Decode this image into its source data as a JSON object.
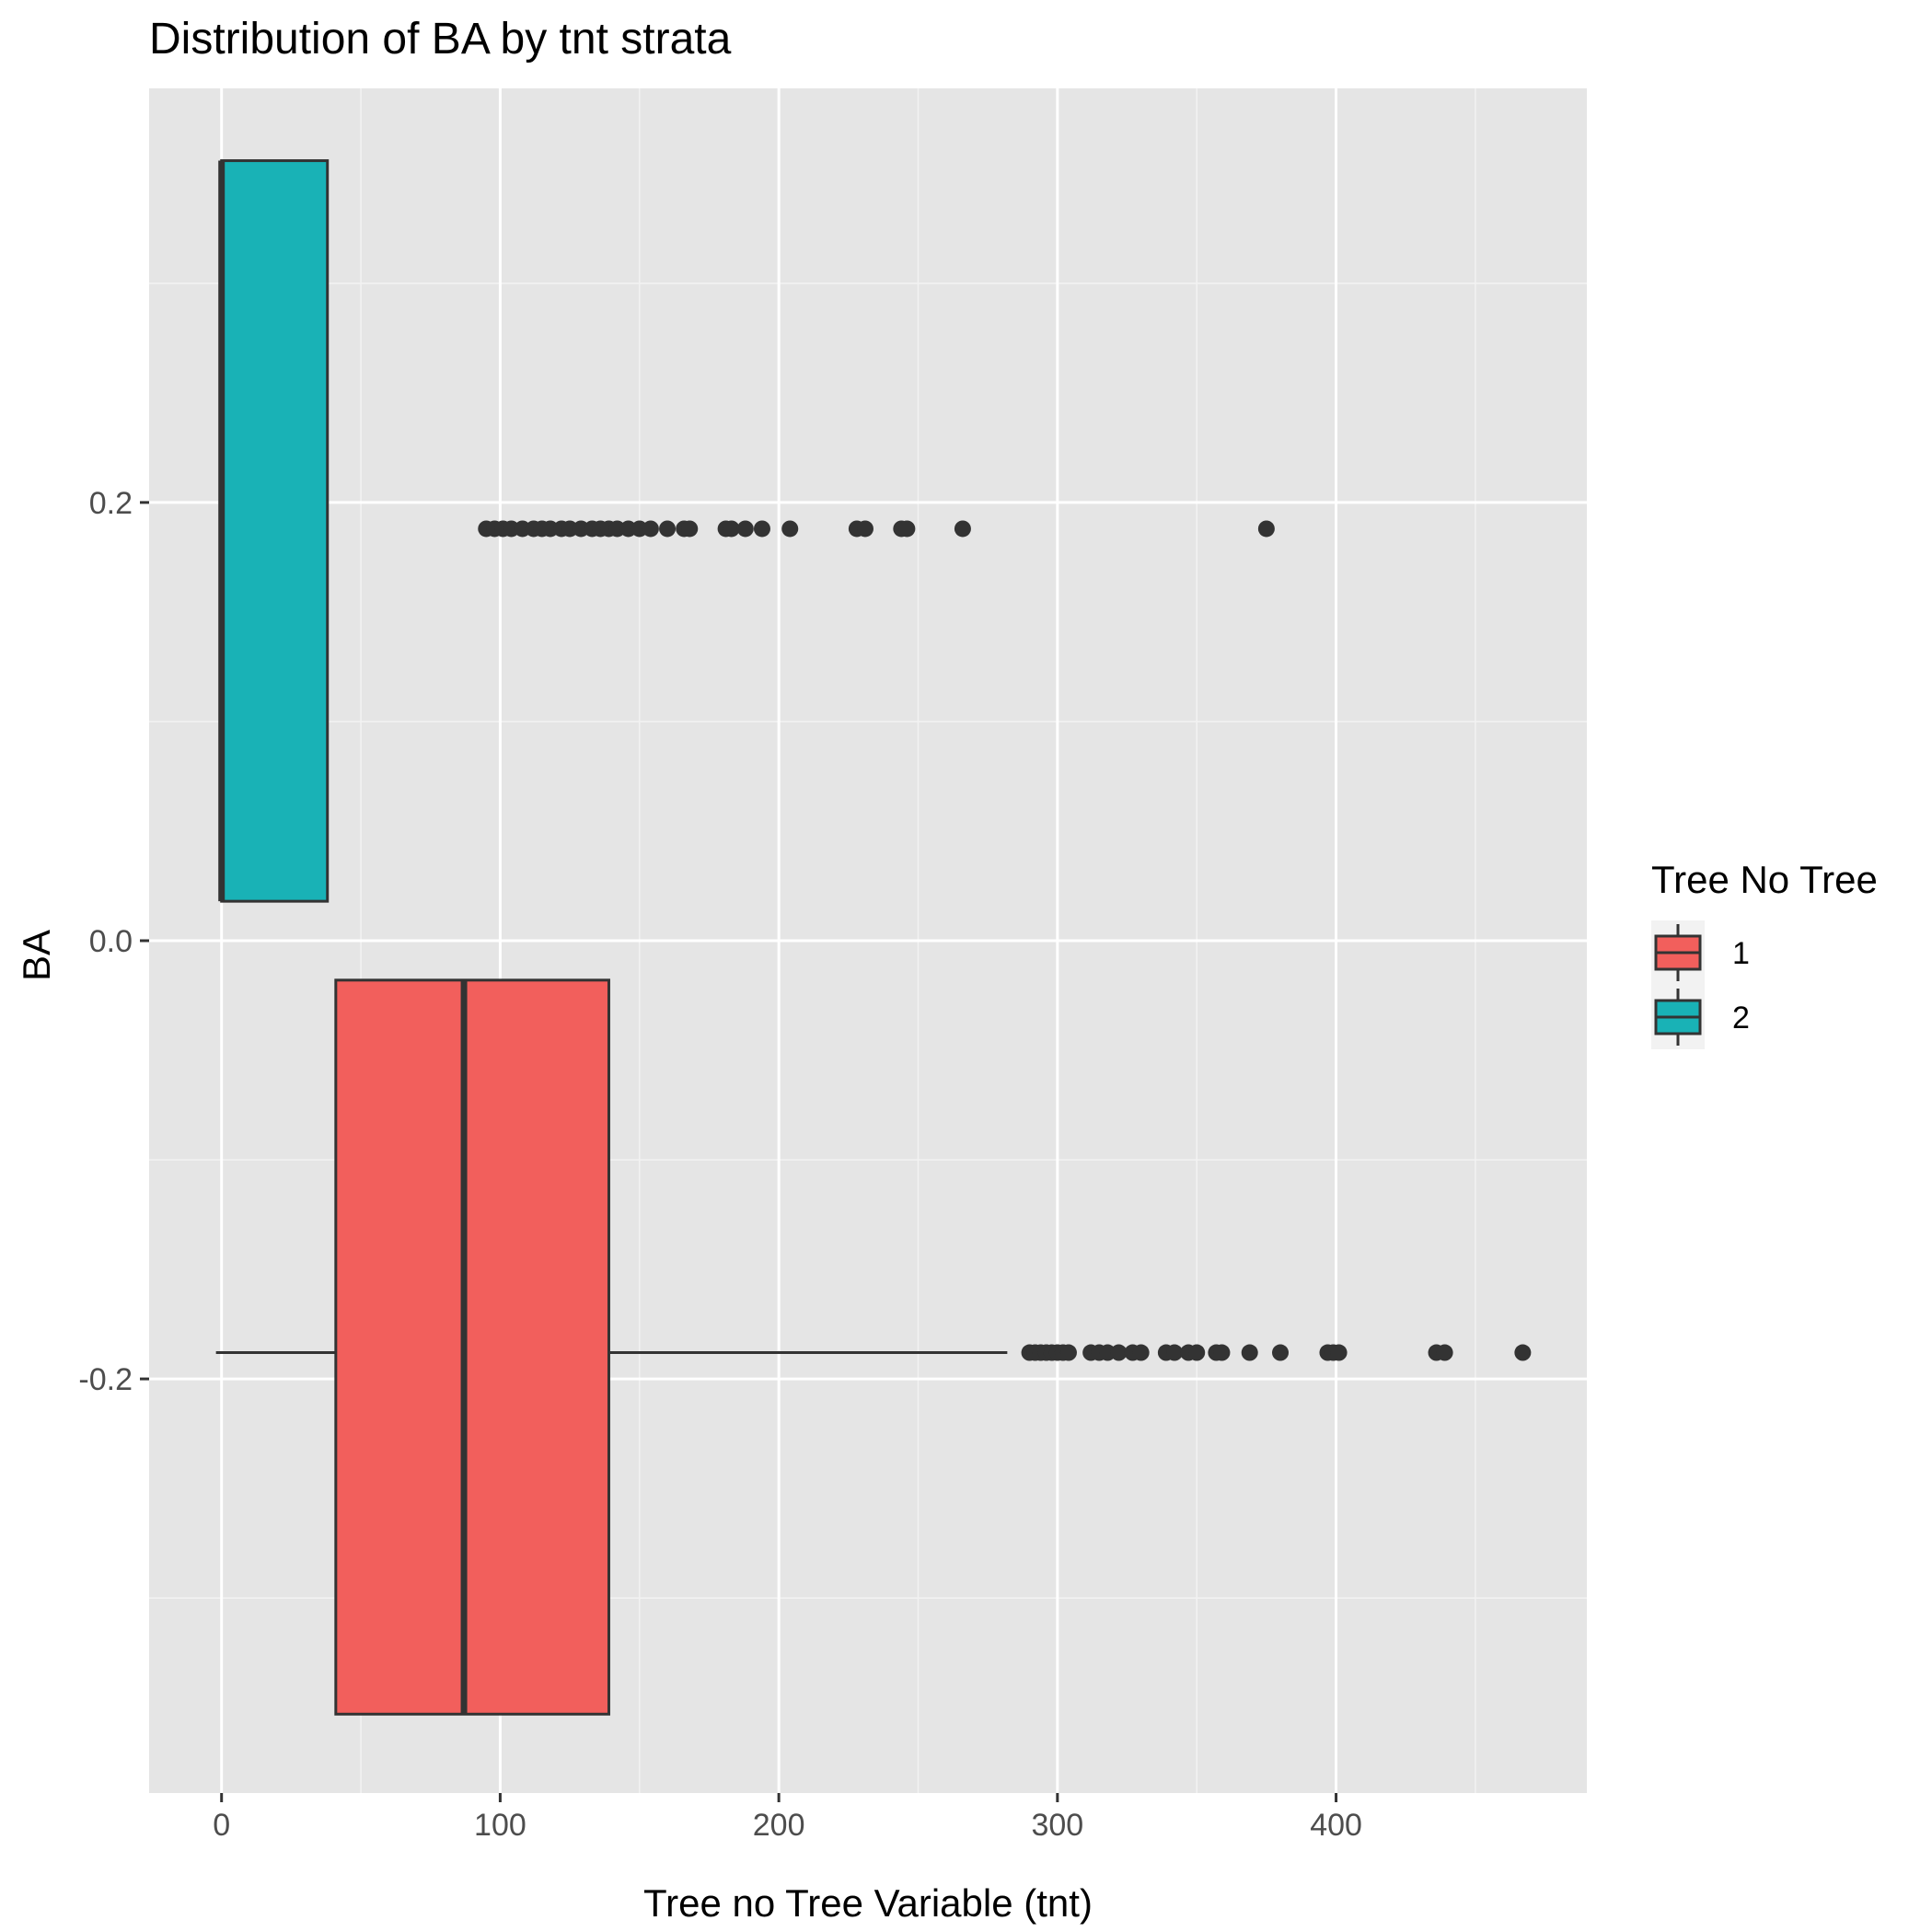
{
  "chart_data": {
    "type": "boxplot",
    "orientation": "horizontal",
    "title": "Distribution of BA by tnt strata",
    "xlabel": "Tree no Tree Variable (tnt)",
    "ylabel": "BA",
    "xlim": [
      -26,
      490
    ],
    "ylim": [
      -0.389,
      0.389
    ],
    "x_ticks": [
      0,
      100,
      200,
      300,
      400
    ],
    "x_tick_labels": [
      "0",
      "100",
      "200",
      "300",
      "400"
    ],
    "y_ticks": [
      -0.2,
      0.0,
      0.2
    ],
    "y_tick_labels": [
      "-0.2",
      "0.0",
      "0.2"
    ],
    "grid": true,
    "legend": {
      "title": "Tree No Tree",
      "position": "right",
      "entries": [
        "1",
        "2"
      ]
    },
    "series": [
      {
        "name": "1",
        "color": "#F25F5C",
        "y_center": -0.188,
        "box_ymin": -0.353,
        "box_ymax": -0.018,
        "whisker_low": -2,
        "q1": 41,
        "median": 87,
        "q3": 139,
        "whisker_high": 282,
        "outliers": [
          290,
          292,
          294,
          296,
          298,
          300,
          302,
          304,
          312,
          315,
          318,
          322,
          327,
          330,
          339,
          342,
          347,
          350,
          357,
          359,
          369,
          380,
          397,
          399,
          401,
          436,
          439,
          467
        ]
      },
      {
        "name": "2",
        "color": "#19B2B6",
        "y_center": 0.188,
        "box_ymin": 0.018,
        "box_ymax": 0.356,
        "whisker_low": 0,
        "q1": 0,
        "median": 0,
        "q3": 38,
        "whisker_high": 38,
        "outliers": [
          95,
          98,
          101,
          104,
          108,
          112,
          115,
          118,
          122,
          125,
          129,
          133,
          136,
          139,
          142,
          146,
          150,
          154,
          160,
          166,
          168,
          181,
          183,
          188,
          194,
          204,
          228,
          231,
          244,
          246,
          266,
          375
        ]
      }
    ]
  }
}
